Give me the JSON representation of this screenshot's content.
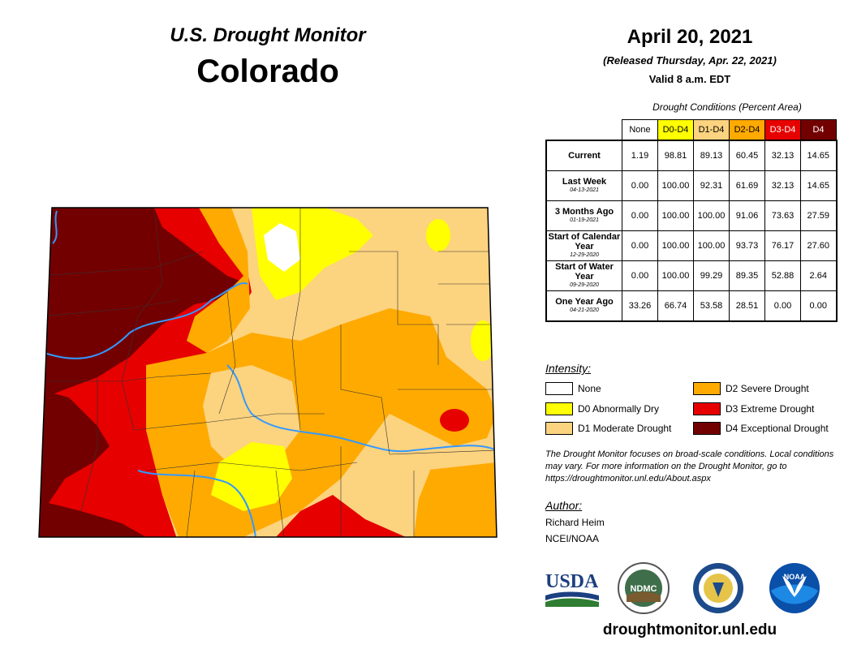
{
  "header": {
    "subtitle": "U.S. Drought Monitor",
    "state": "Colorado",
    "date": "April 20, 2021",
    "released": "(Released Thursday, Apr. 22, 2021)",
    "valid": "Valid 8 a.m. EDT"
  },
  "table": {
    "caption": "Drought Conditions (Percent Area)",
    "columns": [
      {
        "label": "None",
        "color": "#ffffff",
        "text_color": "#000000"
      },
      {
        "label": "D0-D4",
        "color": "#ffff00",
        "text_color": "#000000"
      },
      {
        "label": "D1-D4",
        "color": "#fcd37f",
        "text_color": "#000000"
      },
      {
        "label": "D2-D4",
        "color": "#ffaa00",
        "text_color": "#000000"
      },
      {
        "label": "D3-D4",
        "color": "#e60000",
        "text_color": "#ffffff"
      },
      {
        "label": "D4",
        "color": "#730000",
        "text_color": "#ffffff"
      }
    ],
    "rows": [
      {
        "label": "Current",
        "date": "",
        "values": [
          "1.19",
          "98.81",
          "89.13",
          "60.45",
          "32.13",
          "14.65"
        ]
      },
      {
        "label": "Last Week",
        "date": "04-13-2021",
        "values": [
          "0.00",
          "100.00",
          "92.31",
          "61.69",
          "32.13",
          "14.65"
        ]
      },
      {
        "label": "3 Months Ago",
        "date": "01-19-2021",
        "values": [
          "0.00",
          "100.00",
          "100.00",
          "91.06",
          "73.63",
          "27.59"
        ]
      },
      {
        "label": "Start of Calendar Year",
        "date": "12-29-2020",
        "values": [
          "0.00",
          "100.00",
          "100.00",
          "93.73",
          "76.17",
          "27.60"
        ]
      },
      {
        "label": "Start of Water Year",
        "date": "09-29-2020",
        "values": [
          "0.00",
          "100.00",
          "99.29",
          "89.35",
          "52.88",
          "2.64"
        ]
      },
      {
        "label": "One Year Ago",
        "date": "04-21-2020",
        "values": [
          "33.26",
          "66.74",
          "53.58",
          "28.51",
          "0.00",
          "0.00"
        ]
      }
    ]
  },
  "legend": {
    "title": "Intensity:",
    "items": [
      {
        "label": "None",
        "color": "#ffffff"
      },
      {
        "label": "D0 Abnormally Dry",
        "color": "#ffff00"
      },
      {
        "label": "D1 Moderate Drought",
        "color": "#fcd37f"
      },
      {
        "label": "D2 Severe Drought",
        "color": "#ffaa00"
      },
      {
        "label": "D3 Extreme Drought",
        "color": "#e60000"
      },
      {
        "label": "D4 Exceptional Drought",
        "color": "#730000"
      }
    ]
  },
  "note": "The Drought Monitor focuses on broad-scale conditions. Local conditions may vary. For more information on the Drought Monitor, go to https://droughtmonitor.unl.edu/About.aspx",
  "author": {
    "label": "Author:",
    "name": "Richard Heim",
    "org": "NCEI/NOAA"
  },
  "logos": {
    "usda": "USDA",
    "ndmc": "NDMC",
    "noaa": "NOAA"
  },
  "url": "droughtmonitor.unl.edu",
  "colors": {
    "none": "#ffffff",
    "d0": "#ffff00",
    "d1": "#fcd37f",
    "d2": "#ffaa00",
    "d3": "#e60000",
    "d4": "#730000",
    "river": "#3399ff"
  }
}
